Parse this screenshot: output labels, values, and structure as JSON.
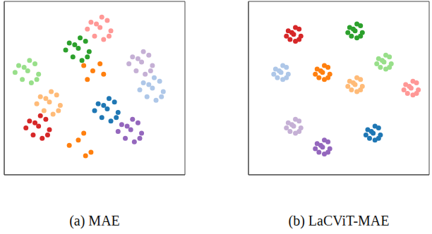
{
  "chart_data": [
    {
      "type": "scatter",
      "title": "(a) MAE",
      "xlim": [
        0,
        100
      ],
      "ylim": [
        0,
        100
      ],
      "tick_labels": false,
      "series": [
        {
          "color": "#ff9896",
          "x": [
            53,
            48,
            57,
            50,
            59,
            46,
            55,
            54,
            51,
            58
          ],
          "y": [
            85,
            88,
            89,
            80,
            83,
            84,
            78,
            91,
            87,
            80
          ]
        },
        {
          "color": "#2ca02c",
          "x": [
            41,
            36,
            45,
            38,
            47,
            34,
            43,
            42,
            39,
            46
          ],
          "y": [
            73,
            76,
            77,
            68,
            71,
            72,
            66,
            79,
            75,
            68
          ]
        },
        {
          "color": "#98df8a",
          "x": [
            13,
            8,
            17,
            10,
            19,
            6,
            15,
            14,
            11,
            18
          ],
          "y": [
            60,
            63,
            64,
            55,
            58,
            59,
            53,
            66,
            62,
            55
          ]
        },
        {
          "color": "#c5b0d5",
          "x": [
            76,
            71,
            80,
            73,
            82,
            69,
            78,
            77,
            74,
            81
          ],
          "y": [
            65,
            68,
            69,
            60,
            63,
            64,
            58,
            71,
            67,
            60
          ]
        },
        {
          "color": "#aec7e8",
          "x": [
            82,
            77,
            86,
            79,
            88,
            75,
            84,
            83,
            80,
            87
          ],
          "y": [
            50,
            53,
            54,
            45,
            48,
            49,
            43,
            56,
            52,
            45
          ]
        },
        {
          "color": "#ff7f0e",
          "x": [
            49,
            44,
            53,
            46,
            55,
            36,
            45,
            44,
            41,
            48
          ],
          "y": [
            60,
            63,
            64,
            55,
            58,
            17,
            11,
            24,
            20,
            13
          ]
        },
        {
          "color": "#ffbb78",
          "x": [
            25,
            20,
            29,
            22,
            31,
            18,
            27,
            26,
            23,
            30
          ],
          "y": [
            42,
            45,
            46,
            37,
            40,
            41,
            35,
            48,
            44,
            37
          ]
        },
        {
          "color": "#1f77b4",
          "x": [
            57,
            52,
            61,
            54,
            63,
            50,
            59,
            58,
            55,
            62
          ],
          "y": [
            38,
            41,
            42,
            33,
            36,
            37,
            31,
            44,
            40,
            33
          ]
        },
        {
          "color": "#d62728",
          "x": [
            19,
            14,
            23,
            16,
            25,
            12,
            21,
            20,
            17,
            24
          ],
          "y": [
            28,
            31,
            32,
            23,
            26,
            27,
            21,
            34,
            30,
            23
          ]
        },
        {
          "color": "#9467bd",
          "x": [
            70,
            65,
            74,
            67,
            76,
            63,
            72,
            71,
            68,
            75
          ],
          "y": [
            26,
            29,
            30,
            21,
            24,
            25,
            19,
            32,
            28,
            21
          ]
        }
      ]
    },
    {
      "type": "scatter",
      "title": "(b) LaCViT-MAE",
      "xlim": [
        0,
        100
      ],
      "ylim": [
        0,
        100
      ],
      "tick_labels": false,
      "series": [
        {
          "color": "#d62728",
          "x": [
            25,
            22,
            28,
            23,
            29,
            21,
            26,
            26,
            24,
            28
          ],
          "y": [
            81,
            83,
            84,
            78,
            80,
            80,
            77,
            85,
            82,
            78
          ]
        },
        {
          "color": "#2ca02c",
          "x": [
            59,
            56,
            62,
            57,
            63,
            55,
            60,
            60,
            58,
            62
          ],
          "y": [
            83,
            85,
            86,
            80,
            82,
            82,
            79,
            87,
            84,
            80
          ]
        },
        {
          "color": "#98df8a",
          "x": [
            75,
            72,
            78,
            73,
            79,
            71,
            76,
            76,
            74,
            78
          ],
          "y": [
            65,
            67,
            68,
            62,
            64,
            64,
            61,
            69,
            66,
            62
          ]
        },
        {
          "color": "#ff7f0e",
          "x": [
            41,
            38,
            44,
            39,
            45,
            37,
            42,
            42,
            40,
            44
          ],
          "y": [
            59,
            61,
            62,
            56,
            58,
            58,
            55,
            63,
            60,
            56
          ]
        },
        {
          "color": "#ffbb78",
          "x": [
            59,
            56,
            62,
            57,
            63,
            55,
            60,
            60,
            58,
            62
          ],
          "y": [
            52,
            54,
            55,
            49,
            51,
            51,
            48,
            56,
            53,
            49
          ]
        },
        {
          "color": "#aec7e8",
          "x": [
            18,
            15,
            21,
            16,
            22,
            14,
            19,
            19,
            17,
            21
          ],
          "y": [
            59,
            61,
            62,
            56,
            58,
            58,
            55,
            63,
            60,
            56
          ]
        },
        {
          "color": "#ff9896",
          "x": [
            90,
            87,
            93,
            88,
            94,
            86,
            91,
            91,
            89,
            93
          ],
          "y": [
            50,
            52,
            53,
            47,
            49,
            49,
            46,
            54,
            51,
            47
          ]
        },
        {
          "color": "#c5b0d5",
          "x": [
            25,
            22,
            28,
            23,
            29,
            21,
            26,
            26,
            24,
            28
          ],
          "y": [
            28,
            30,
            31,
            25,
            27,
            27,
            24,
            32,
            29,
            25
          ]
        },
        {
          "color": "#9467bd",
          "x": [
            41,
            38,
            44,
            39,
            45,
            37,
            42,
            42,
            40,
            44
          ],
          "y": [
            16,
            18,
            19,
            13,
            15,
            15,
            12,
            20,
            17,
            13
          ]
        },
        {
          "color": "#1f77b4",
          "x": [
            69,
            66,
            72,
            67,
            73,
            65,
            70,
            70,
            68,
            72
          ],
          "y": [
            24,
            26,
            27,
            21,
            23,
            23,
            20,
            28,
            25,
            21
          ]
        }
      ]
    }
  ]
}
